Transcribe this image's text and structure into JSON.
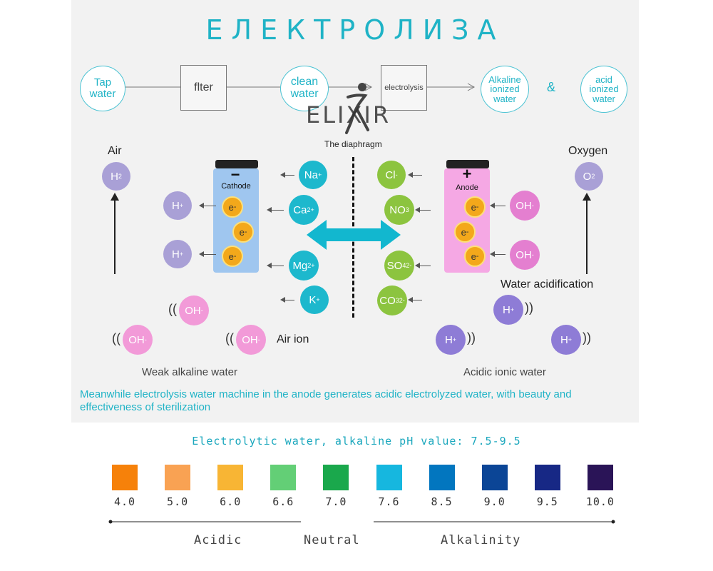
{
  "title": "ЕЛЕКТРОЛИЗА",
  "flow": {
    "tap_line1": "Tap",
    "tap_line2": "water",
    "filter": "flter",
    "clean_line1": "clean",
    "clean_line2": "water",
    "electrolysis": "electrolysis",
    "alk_line1": "Alkaline",
    "alk_line2": "ionized",
    "alk_line3": "water",
    "amp": "&",
    "acid_line1": "acid",
    "acid_line2": "ionized",
    "acid_line3": "water"
  },
  "logo": {
    "text": "ELIXIR"
  },
  "diagram": {
    "diaphragm": "The diaphragm",
    "air": "Air",
    "oxygen": "Oxygen",
    "h2": "H",
    "h2_sub": "2",
    "o2": "O",
    "o2_sub": "2",
    "cathode": "Cathode",
    "anode": "Anode",
    "minus": "−",
    "plus": "+",
    "electron": "e",
    "electron_sup": "-",
    "hplus": "H",
    "plus_sup": "+",
    "oh": "OH",
    "minus_sup": "-",
    "cations": [
      {
        "sym": "Na",
        "sup": "+"
      },
      {
        "sym": "Ca",
        "sup": "2+"
      },
      {
        "sym": "Mg",
        "sup": "2+"
      },
      {
        "sym": "K",
        "sup": "+"
      }
    ],
    "anions": [
      {
        "sym": "Cl",
        "sub": "",
        "sup": "-"
      },
      {
        "sym": "NO",
        "sub": "",
        "sup": "3"
      },
      {
        "sym": "SO",
        "sub": "4",
        "sup": "2-"
      },
      {
        "sym": "CO",
        "sub": "3",
        "sup": "2-"
      }
    ],
    "water_acidification": "Water acidification",
    "air_ion": "Air ion",
    "weak_alkaline": "Weak alkaline water",
    "acidic_ionic": "Acidic ionic water",
    "description": "Meanwhile electrolysis water machine in the anode generates acidic electrolyzed water, with beauty and effectiveness of sterilization"
  },
  "scale": {
    "heading": "Electrolytic water, alkaline pH value: 7.5-9.5",
    "values": [
      "4.0",
      "5.0",
      "6.0",
      "6.6",
      "7.0",
      "7.6",
      "8.5",
      "9.0",
      "9.5",
      "10.0"
    ],
    "colors": [
      "#f6810a",
      "#f9a253",
      "#f8b534",
      "#63cf76",
      "#1aa84c",
      "#16b7df",
      "#0276bf",
      "#0b4596",
      "#172885",
      "#2a1457"
    ],
    "acidic": "Acidic",
    "neutral": "Neutral",
    "alkalinity": "Alkalinity"
  }
}
